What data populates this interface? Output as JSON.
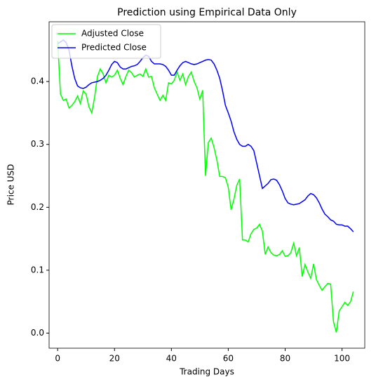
{
  "chart_data": {
    "type": "line",
    "title": "Prediction using Empirical Data Only",
    "x_label": "Trading Days",
    "y_label": "Price USD",
    "x": [
      0,
      1,
      2,
      3,
      4,
      5,
      6,
      7,
      8,
      9,
      10,
      11,
      12,
      13,
      14,
      15,
      16,
      17,
      18,
      19,
      20,
      21,
      22,
      23,
      24,
      25,
      26,
      27,
      28,
      29,
      30,
      31,
      32,
      33,
      34,
      35,
      36,
      37,
      38,
      39,
      40,
      41,
      42,
      43,
      44,
      45,
      46,
      47,
      48,
      49,
      50,
      51,
      52,
      53,
      54,
      55,
      56,
      57,
      58,
      59,
      60,
      61,
      62,
      63,
      64,
      65,
      66,
      67,
      68,
      69,
      70,
      71,
      72,
      73,
      74,
      75,
      76,
      77,
      78,
      79,
      80,
      81,
      82,
      83,
      84,
      85,
      86,
      87,
      88,
      89,
      90,
      91,
      92,
      93,
      94,
      95,
      96,
      97,
      98,
      99,
      100,
      101,
      102,
      103,
      104
    ],
    "series": [
      {
        "name": "Adjusted Close",
        "color": "#00ff00",
        "values": [
          0.465,
          0.38,
          0.37,
          0.372,
          0.358,
          0.362,
          0.368,
          0.377,
          0.365,
          0.385,
          0.38,
          0.36,
          0.35,
          0.375,
          0.408,
          0.42,
          0.412,
          0.398,
          0.41,
          0.407,
          0.41,
          0.418,
          0.405,
          0.395,
          0.408,
          0.418,
          0.414,
          0.407,
          0.41,
          0.412,
          0.408,
          0.42,
          0.407,
          0.408,
          0.39,
          0.38,
          0.37,
          0.378,
          0.37,
          0.398,
          0.396,
          0.402,
          0.415,
          0.402,
          0.412,
          0.395,
          0.408,
          0.415,
          0.4,
          0.39,
          0.372,
          0.386,
          0.25,
          0.303,
          0.31,
          0.295,
          0.275,
          0.249,
          0.249,
          0.247,
          0.232,
          0.196,
          0.213,
          0.235,
          0.245,
          0.148,
          0.148,
          0.145,
          0.158,
          0.165,
          0.167,
          0.173,
          0.162,
          0.125,
          0.137,
          0.128,
          0.124,
          0.123,
          0.125,
          0.131,
          0.122,
          0.123,
          0.128,
          0.143,
          0.123,
          0.136,
          0.09,
          0.109,
          0.097,
          0.087,
          0.11,
          0.085,
          0.076,
          0.068,
          0.074,
          0.079,
          0.078,
          0.018,
          0.001,
          0.035,
          0.042,
          0.049,
          0.044,
          0.05,
          0.066
        ]
      },
      {
        "name": "Predicted Close",
        "color": "#0000ff",
        "values": [
          0.46,
          0.463,
          0.466,
          0.462,
          0.45,
          0.425,
          0.405,
          0.393,
          0.39,
          0.389,
          0.391,
          0.395,
          0.398,
          0.399,
          0.4,
          0.402,
          0.405,
          0.41,
          0.418,
          0.427,
          0.432,
          0.43,
          0.423,
          0.42,
          0.42,
          0.422,
          0.424,
          0.425,
          0.427,
          0.432,
          0.438,
          0.442,
          0.44,
          0.432,
          0.428,
          0.428,
          0.428,
          0.427,
          0.424,
          0.418,
          0.41,
          0.41,
          0.418,
          0.425,
          0.43,
          0.432,
          0.43,
          0.428,
          0.427,
          0.428,
          0.43,
          0.432,
          0.434,
          0.435,
          0.434,
          0.428,
          0.418,
          0.405,
          0.385,
          0.362,
          0.35,
          0.337,
          0.32,
          0.308,
          0.3,
          0.297,
          0.297,
          0.3,
          0.297,
          0.29,
          0.27,
          0.25,
          0.23,
          0.234,
          0.238,
          0.244,
          0.245,
          0.243,
          0.236,
          0.226,
          0.214,
          0.207,
          0.205,
          0.204,
          0.205,
          0.206,
          0.209,
          0.212,
          0.218,
          0.222,
          0.22,
          0.215,
          0.207,
          0.197,
          0.189,
          0.185,
          0.18,
          0.178,
          0.173,
          0.172,
          0.172,
          0.17,
          0.17,
          0.166,
          0.161
        ]
      }
    ],
    "xlim": [
      -3,
      108
    ],
    "xticks": [
      0,
      20,
      40,
      60,
      80,
      100
    ],
    "ylim": [
      -0.024,
      0.495
    ],
    "yticks": [
      {
        "value": 0,
        "label": "0.0"
      },
      0.1,
      0.2,
      0.3,
      0.4
    ],
    "legend": "upper left",
    "grid": false
  }
}
